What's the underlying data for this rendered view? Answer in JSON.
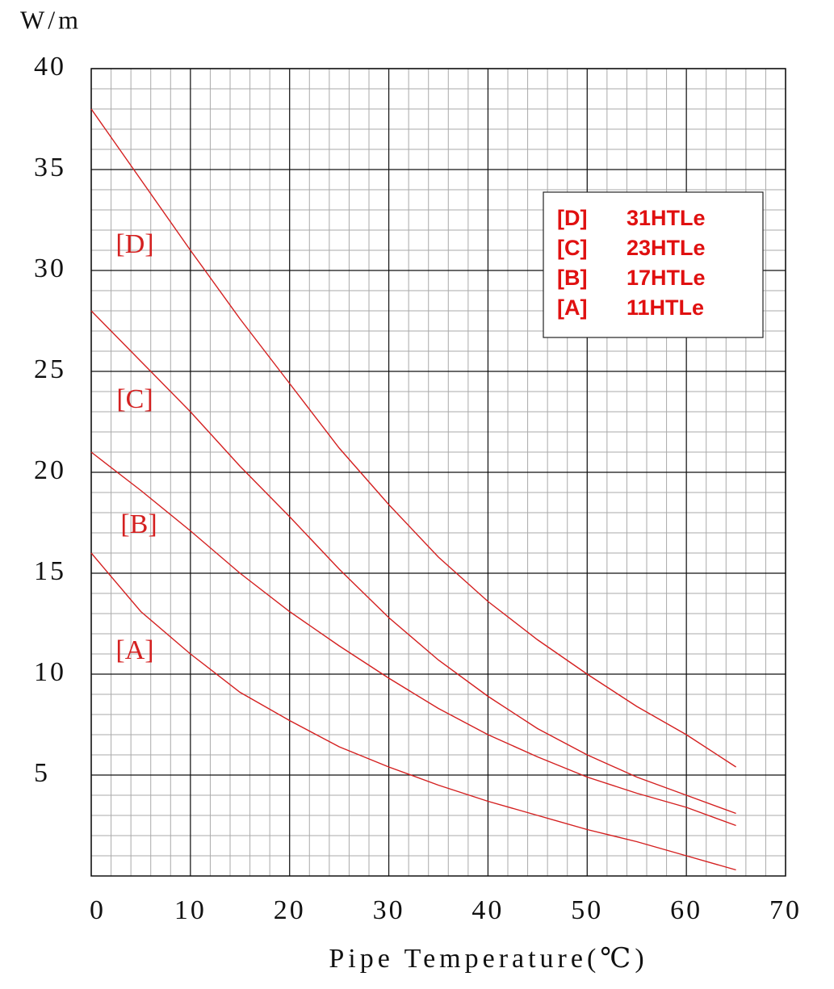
{
  "chart_data": {
    "type": "line",
    "y_label": "W/m",
    "x_label": "Pipe Temperature(℃)",
    "x": [
      0,
      5,
      10,
      15,
      20,
      25,
      30,
      35,
      40,
      45,
      50,
      55,
      60,
      65
    ],
    "series": [
      {
        "name": "31HTLe",
        "tag": "[D]",
        "color": "#d42020",
        "values": [
          38,
          34.5,
          31,
          27.6,
          24.4,
          21.2,
          18.4,
          15.8,
          13.6,
          11.7,
          10,
          8.4,
          7,
          5.4
        ]
      },
      {
        "name": "23HTLe",
        "tag": "[C]",
        "color": "#d42020",
        "values": [
          28,
          25.5,
          23,
          20.3,
          17.8,
          15.2,
          12.8,
          10.7,
          8.9,
          7.3,
          6,
          4.9,
          4,
          3.1
        ]
      },
      {
        "name": "17HTLe",
        "tag": "[B]",
        "color": "#d42020",
        "values": [
          21,
          19.1,
          17.1,
          15,
          13.1,
          11.4,
          9.8,
          8.3,
          7,
          5.9,
          4.9,
          4.1,
          3.4,
          2.5
        ]
      },
      {
        "name": "11HTLe",
        "tag": "[A]",
        "color": "#d42020",
        "values": [
          16,
          13.1,
          11,
          9.1,
          7.7,
          6.4,
          5.4,
          4.5,
          3.7,
          3,
          2.3,
          1.7,
          1,
          0.3
        ]
      }
    ],
    "xlim": [
      0,
      70
    ],
    "xticks": [
      0,
      10,
      20,
      30,
      40,
      50,
      60,
      70
    ],
    "ylim": [
      0,
      40
    ],
    "yticks": [
      5,
      10,
      15,
      20,
      25,
      30,
      35,
      40
    ],
    "grid": true,
    "legend": "upper right"
  }
}
